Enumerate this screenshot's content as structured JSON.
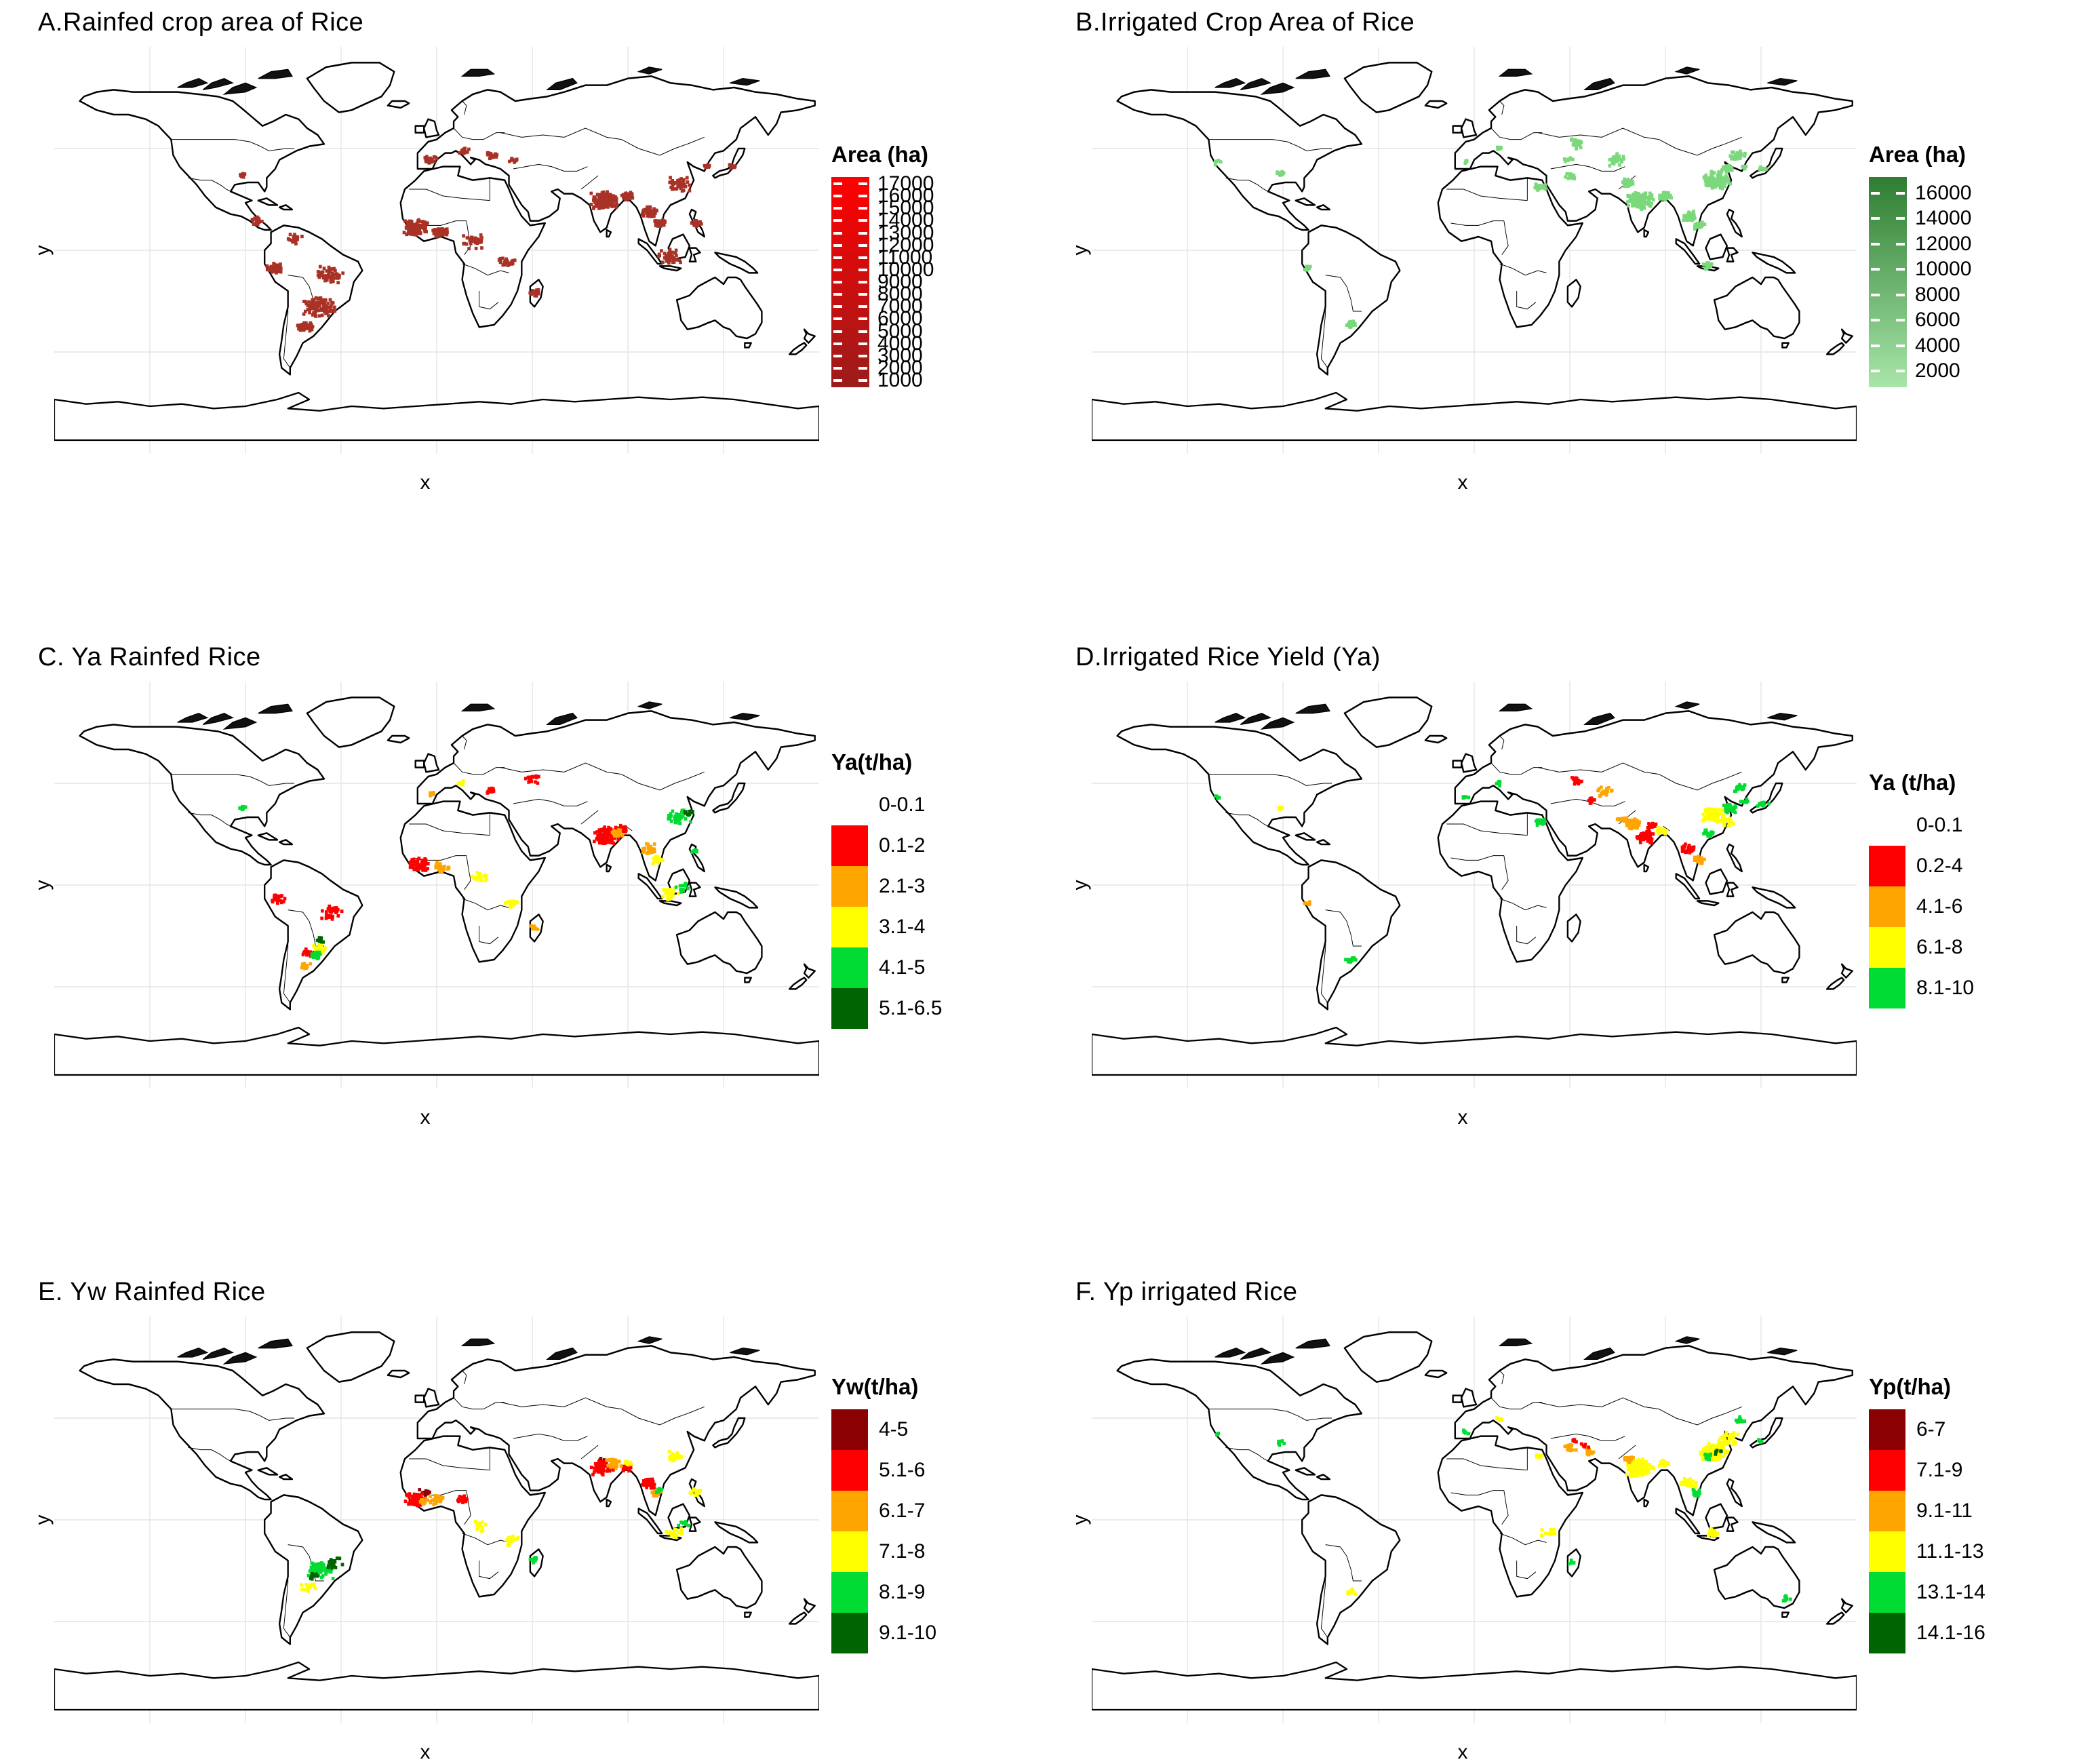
{
  "palette": {
    "darkred": "#8B0000",
    "red": "#FF0000",
    "orange": "#FFA500",
    "yellow": "#FFFF00",
    "green": "#00DC32",
    "darkgreen": "#006400",
    "rainfed_red": "#A93226",
    "irrigated_green": "#7CD87C",
    "grid": "#E8E8E8",
    "coast": "#000000"
  },
  "panels": [
    {
      "id": "A",
      "title": "A.Rainfed crop area of Rice",
      "xlabel": "x",
      "ylabel": "y",
      "legend": {
        "type": "gradient",
        "title": "Area (ha)",
        "top_color": "#FF0000",
        "bottom_color": "#9B1C1C",
        "ticks": [
          "17000",
          "16000",
          "15000",
          "14000",
          "13000",
          "12000",
          "11000",
          "10000",
          "9000",
          "8000",
          "7000",
          "6000",
          "5000",
          "4000",
          "3000",
          "2000",
          "1000"
        ]
      },
      "dots": [
        [
          -55,
          -25,
          110,
          8,
          "rainfed_red"
        ],
        [
          -62,
          -34,
          50,
          4,
          "rainfed_red"
        ],
        [
          -76,
          -8,
          45,
          4,
          "rainfed_red"
        ],
        [
          -50,
          -11,
          55,
          7,
          "rainfed_red"
        ],
        [
          -85,
          13,
          18,
          3,
          "rainfed_red"
        ],
        [
          -67,
          5,
          20,
          4,
          "rainfed_red"
        ],
        [
          -10,
          10,
          110,
          6,
          "rainfed_red"
        ],
        [
          2,
          8,
          50,
          4,
          "rainfed_red"
        ],
        [
          18,
          4,
          30,
          6,
          "rainfed_red"
        ],
        [
          33,
          -5,
          25,
          4,
          "rainfed_red"
        ],
        [
          46,
          -19,
          16,
          3,
          "rainfed_red"
        ],
        [
          -3,
          40,
          22,
          4,
          "rainfed_red"
        ],
        [
          13,
          44,
          18,
          3,
          "rainfed_red"
        ],
        [
          26,
          42,
          16,
          3,
          "rainfed_red"
        ],
        [
          36,
          40,
          10,
          3,
          "rainfed_red"
        ],
        [
          79,
          22,
          130,
          7,
          "rainfed_red"
        ],
        [
          90,
          24,
          45,
          3,
          "rainfed_red"
        ],
        [
          100,
          17,
          60,
          4,
          "rainfed_red"
        ],
        [
          105,
          12,
          35,
          3,
          "rainfed_red"
        ],
        [
          110,
          -3,
          40,
          6,
          "rainfed_red"
        ],
        [
          122,
          12,
          22,
          3,
          "rainfed_red"
        ],
        [
          114,
          29,
          45,
          6,
          "rainfed_red"
        ],
        [
          128,
          37,
          12,
          2,
          "rainfed_red"
        ],
        [
          139,
          37,
          12,
          2,
          "rainfed_red"
        ],
        [
          -91,
          33,
          8,
          2,
          "rainfed_red"
        ]
      ]
    },
    {
      "id": "B",
      "title": "B.Irrigated Crop Area of Rice",
      "xlabel": "x",
      "ylabel": "y",
      "legend": {
        "type": "gradient",
        "title": "Area (ha)",
        "top_color": "#2E7D32",
        "bottom_color": "#A8E6A8",
        "ticks": [
          "16000",
          "14000",
          "12000",
          "10000",
          "8000",
          "6000",
          "4000",
          "2000"
        ]
      },
      "dots": [
        [
          78,
          22,
          120,
          7,
          "irrigated_green"
        ],
        [
          90,
          24,
          45,
          3,
          "irrigated_green"
        ],
        [
          72,
          30,
          30,
          3,
          "irrigated_green"
        ],
        [
          114,
          31,
          110,
          7,
          "irrigated_green"
        ],
        [
          124,
          42,
          35,
          4,
          "irrigated_green"
        ],
        [
          119,
          36,
          25,
          3,
          "irrigated_green"
        ],
        [
          101,
          15,
          40,
          4,
          "irrigated_green"
        ],
        [
          106,
          11,
          25,
          3,
          "irrigated_green"
        ],
        [
          110,
          -7,
          20,
          3,
          "irrigated_green"
        ],
        [
          31,
          28,
          22,
          3,
          "irrigated_green"
        ],
        [
          66,
          40,
          30,
          5,
          "irrigated_green"
        ],
        [
          48,
          47,
          25,
          4,
          "irrigated_green"
        ],
        [
          45,
          33,
          15,
          3,
          "irrigated_green"
        ],
        [
          -58,
          -33,
          22,
          3,
          "irrigated_green"
        ],
        [
          -78,
          -8,
          8,
          2,
          "irrigated_green"
        ],
        [
          -91,
          34,
          12,
          2,
          "irrigated_green"
        ],
        [
          -121,
          39,
          6,
          2,
          "irrigated_green"
        ],
        [
          136,
          36,
          12,
          2,
          "irrigated_green"
        ],
        [
          127,
          37,
          8,
          2,
          "irrigated_green"
        ],
        [
          -4,
          39,
          6,
          2,
          "irrigated_green"
        ],
        [
          12,
          45,
          6,
          2,
          "irrigated_green"
        ],
        [
          44,
          40,
          8,
          3,
          "irrigated_green"
        ]
      ]
    },
    {
      "id": "C",
      "title": "C. Ya Rainfed Rice",
      "xlabel": "x",
      "ylabel": "y",
      "legend": {
        "type": "discrete",
        "title": "Ya(t/ha)",
        "items": [
          {
            "label": "0-0.1",
            "color": "#FFFFFF"
          },
          {
            "label": "0.1-2",
            "color": "#FF0000"
          },
          {
            "label": "2.1-3",
            "color": "#FFA500"
          },
          {
            "label": "3.1-4",
            "color": "#FFFF00"
          },
          {
            "label": "4.1-5",
            "color": "#00DC32"
          },
          {
            "label": "5.1-6.5",
            "color": "#006400"
          }
        ]
      },
      "dots": [
        [
          80,
          22,
          100,
          7,
          "red"
        ],
        [
          -8,
          9,
          60,
          5,
          "red"
        ],
        [
          -75,
          -6,
          25,
          4,
          "red"
        ],
        [
          -50,
          -12,
          35,
          6,
          "red"
        ],
        [
          25,
          42,
          12,
          3,
          "red"
        ],
        [
          45,
          47,
          18,
          4,
          "red"
        ],
        [
          88,
          25,
          20,
          3,
          "red"
        ],
        [
          -60,
          -30,
          20,
          4,
          "red"
        ],
        [
          85,
          23,
          25,
          3,
          "orange"
        ],
        [
          2,
          8,
          28,
          4,
          "orange"
        ],
        [
          100,
          16,
          40,
          4,
          "orange"
        ],
        [
          46,
          -19,
          10,
          2,
          "orange"
        ],
        [
          -2,
          40,
          8,
          2,
          "orange"
        ],
        [
          -62,
          -36,
          12,
          3,
          "orange"
        ],
        [
          104,
          11,
          22,
          3,
          "yellow"
        ],
        [
          20,
          3,
          20,
          5,
          "yellow"
        ],
        [
          35,
          -8,
          16,
          4,
          "yellow"
        ],
        [
          12,
          45,
          10,
          2,
          "yellow"
        ],
        [
          110,
          -4,
          25,
          5,
          "yellow"
        ],
        [
          -55,
          -28,
          25,
          4,
          "yellow"
        ],
        [
          114,
          30,
          45,
          6,
          "green"
        ],
        [
          -57,
          -31,
          20,
          3,
          "green"
        ],
        [
          -91,
          34,
          10,
          2,
          "green"
        ],
        [
          121,
          15,
          8,
          2,
          "green"
        ],
        [
          116,
          -1,
          12,
          4,
          "green"
        ],
        [
          -55,
          -24,
          12,
          3,
          "darkgreen"
        ],
        [
          118,
          32,
          10,
          3,
          "darkgreen"
        ]
      ]
    },
    {
      "id": "D",
      "title": "D.Irrigated Rice Yield (Ya)",
      "xlabel": "x",
      "ylabel": "y",
      "legend": {
        "type": "discrete",
        "title": "Ya (t/ha)",
        "items": [
          {
            "label": "0-0.1",
            "color": "#FFFFFF"
          },
          {
            "label": "0.2-4",
            "color": "#FF0000"
          },
          {
            "label": "4.1-6",
            "color": "#FFA500"
          },
          {
            "label": "6.1-8",
            "color": "#FFFF00"
          },
          {
            "label": "8.1-10",
            "color": "#00DC32"
          }
        ]
      },
      "dots": [
        [
          75,
          27,
          60,
          4,
          "orange"
        ],
        [
          70,
          29,
          25,
          3,
          "orange"
        ],
        [
          106,
          11,
          20,
          3,
          "orange"
        ],
        [
          62,
          41,
          22,
          4,
          "orange"
        ],
        [
          -78,
          -8,
          6,
          2,
          "orange"
        ],
        [
          80,
          21,
          50,
          5,
          "red"
        ],
        [
          101,
          16,
          30,
          4,
          "red"
        ],
        [
          48,
          46,
          16,
          3,
          "red"
        ],
        [
          84,
          26,
          15,
          3,
          "red"
        ],
        [
          55,
          37,
          10,
          3,
          "red"
        ],
        [
          113,
          31,
          70,
          6,
          "yellow"
        ],
        [
          88,
          24,
          22,
          3,
          "yellow"
        ],
        [
          -91,
          34,
          8,
          2,
          "yellow"
        ],
        [
          119,
          28,
          20,
          4,
          "yellow"
        ],
        [
          120,
          34,
          30,
          4,
          "green"
        ],
        [
          125,
          43,
          22,
          3,
          "green"
        ],
        [
          31,
          28,
          16,
          3,
          "green"
        ],
        [
          136,
          36,
          12,
          3,
          "green"
        ],
        [
          127,
          37,
          8,
          2,
          "green"
        ],
        [
          -58,
          -33,
          12,
          3,
          "green"
        ],
        [
          -121,
          39,
          5,
          2,
          "green"
        ],
        [
          -4,
          39,
          5,
          2,
          "green"
        ],
        [
          12,
          45,
          7,
          2,
          "green"
        ],
        [
          110,
          23,
          15,
          3,
          "green"
        ]
      ]
    },
    {
      "id": "E",
      "title": "E. Yw Rainfed Rice",
      "xlabel": "x",
      "ylabel": "y",
      "legend": {
        "type": "discrete",
        "title": "Yw(t/ha)",
        "items": [
          {
            "label": "4-5",
            "color": "#8B0000"
          },
          {
            "label": "5.1-6",
            "color": "#FF0000"
          },
          {
            "label": "6.1-7",
            "color": "#FFA500"
          },
          {
            "label": "7.1-8",
            "color": "#FFFF00"
          },
          {
            "label": "8.1-9",
            "color": "#00DC32"
          },
          {
            "label": "9.1-10",
            "color": "#006400"
          }
        ]
      },
      "dots": [
        [
          -6,
          12,
          12,
          3,
          "darkred"
        ],
        [
          78,
          26,
          10,
          3,
          "darkred"
        ],
        [
          -10,
          9,
          65,
          5,
          "red"
        ],
        [
          78,
          23,
          65,
          6,
          "red"
        ],
        [
          100,
          16,
          40,
          4,
          "red"
        ],
        [
          90,
          23,
          18,
          3,
          "red"
        ],
        [
          12,
          9,
          20,
          3,
          "red"
        ],
        [
          0,
          9,
          30,
          4,
          "orange"
        ],
        [
          84,
          25,
          30,
          4,
          "orange"
        ],
        [
          104,
          12,
          22,
          3,
          "orange"
        ],
        [
          -6,
          8,
          15,
          3,
          "orange"
        ],
        [
          20,
          -3,
          16,
          4,
          "yellow"
        ],
        [
          35,
          -9,
          20,
          4,
          "yellow"
        ],
        [
          90,
          25,
          12,
          2,
          "yellow"
        ],
        [
          112,
          28,
          25,
          4,
          "yellow"
        ],
        [
          122,
          12,
          14,
          3,
          "yellow"
        ],
        [
          112,
          -6,
          22,
          5,
          "yellow"
        ],
        [
          -60,
          -30,
          16,
          4,
          "yellow"
        ],
        [
          -55,
          -22,
          70,
          7,
          "green"
        ],
        [
          46,
          -18,
          12,
          3,
          "green"
        ],
        [
          116,
          -2,
          10,
          3,
          "green"
        ],
        [
          105,
          13,
          8,
          2,
          "green"
        ],
        [
          -49,
          -19,
          22,
          5,
          "darkgreen"
        ],
        [
          -58,
          -25,
          10,
          3,
          "darkgreen"
        ]
      ]
    },
    {
      "id": "F",
      "title": "F. Yp irrigated Rice",
      "xlabel": "x",
      "ylabel": "y",
      "legend": {
        "type": "discrete",
        "title": "Yp(t/ha)",
        "items": [
          {
            "label": "6-7",
            "color": "#8B0000"
          },
          {
            "label": "7.1-9",
            "color": "#FF0000"
          },
          {
            "label": "9.1-11",
            "color": "#FFA500"
          },
          {
            "label": "11.1-13",
            "color": "#FFFF00"
          },
          {
            "label": "13.1-14",
            "color": "#00DC32"
          },
          {
            "label": "14.1-16",
            "color": "#006400"
          }
        ]
      },
      "dots": [
        [
          78,
          23,
          120,
          7,
          "yellow"
        ],
        [
          113,
          30,
          120,
          7,
          "yellow"
        ],
        [
          120,
          36,
          35,
          5,
          "yellow"
        ],
        [
          101,
          16,
          35,
          4,
          "yellow"
        ],
        [
          112,
          -6,
          18,
          4,
          "yellow"
        ],
        [
          35,
          -6,
          12,
          4,
          "yellow"
        ],
        [
          31,
          28,
          8,
          2,
          "yellow"
        ],
        [
          12,
          44,
          6,
          2,
          "yellow"
        ],
        [
          -58,
          -32,
          8,
          3,
          "yellow"
        ],
        [
          89,
          25,
          15,
          3,
          "yellow"
        ],
        [
          45,
          32,
          16,
          4,
          "orange"
        ],
        [
          73,
          27,
          20,
          3,
          "orange"
        ],
        [
          55,
          30,
          10,
          3,
          "orange"
        ],
        [
          52,
          33,
          6,
          2,
          "red"
        ],
        [
          47,
          35,
          5,
          2,
          "red"
        ],
        [
          105,
          12,
          18,
          3,
          "green"
        ],
        [
          125,
          44,
          14,
          3,
          "green"
        ],
        [
          -91,
          34,
          8,
          2,
          "green"
        ],
        [
          -121,
          38,
          5,
          2,
          "green"
        ],
        [
          -4,
          39,
          5,
          2,
          "green"
        ],
        [
          46,
          -19,
          7,
          2,
          "green"
        ],
        [
          147,
          -35,
          8,
          3,
          "green"
        ],
        [
          135,
          35,
          6,
          2,
          "green"
        ],
        [
          110,
          28,
          10,
          3,
          "green"
        ],
        [
          115,
          30,
          6,
          2,
          "darkgreen"
        ]
      ]
    }
  ]
}
